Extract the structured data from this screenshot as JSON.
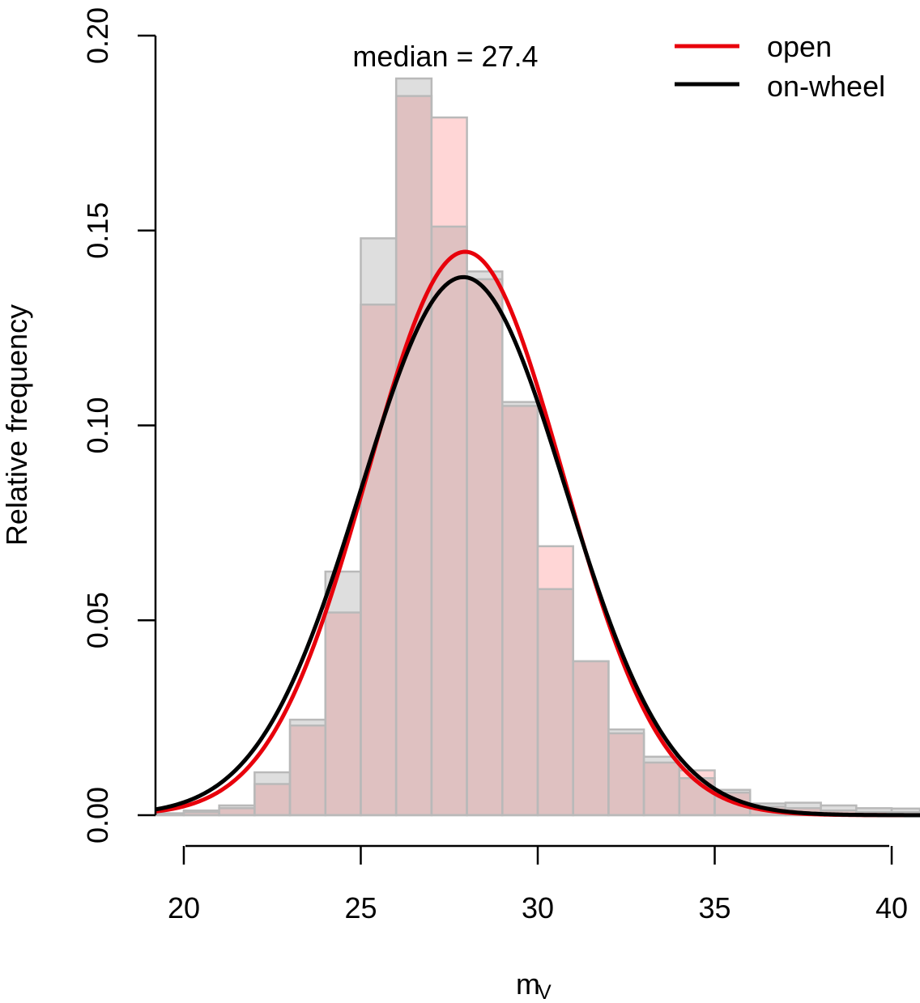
{
  "chart_data": {
    "type": "bar",
    "title": "",
    "annotation": "median = 27.4",
    "xlabel": "m",
    "xlabel_subscript": "V",
    "ylabel": "Relative frequency",
    "xlim": [
      19.2,
      40.8
    ],
    "ylim": [
      0,
      0.2
    ],
    "xticks": [
      20,
      25,
      30,
      35,
      40
    ],
    "xtick_labels": [
      "20",
      "25",
      "30",
      "35",
      "40"
    ],
    "yticks": [
      0,
      0.05,
      0.1,
      0.15,
      0.2
    ],
    "ytick_labels": [
      "0.00",
      "0.05",
      "0.10",
      "0.15",
      "0.20"
    ],
    "bin_edges": [
      19,
      20,
      21,
      22,
      23,
      24,
      25,
      26,
      27,
      28,
      29,
      30,
      31,
      32,
      33,
      34,
      35,
      36,
      37,
      38,
      39,
      40,
      41
    ],
    "histograms": [
      {
        "name": "on-wheel",
        "fill": "#dedede",
        "stroke": "#b9b9b9",
        "values": [
          0.0005,
          0.0012,
          0.0025,
          0.011,
          0.0245,
          0.0625,
          0.148,
          0.189,
          0.151,
          0.1395,
          0.106,
          0.058,
          0.0395,
          0.022,
          0.015,
          0.0095,
          0.0065,
          0.003,
          0.0032,
          0.0025,
          0.0018,
          0.0017
        ]
      },
      {
        "name": "open",
        "fill": "#ffd6d6",
        "stroke": "#b9b9b9",
        "values": [
          0.0003,
          0.0008,
          0.0018,
          0.008,
          0.023,
          0.052,
          0.131,
          0.1845,
          0.179,
          0.1375,
          0.105,
          0.069,
          0.0395,
          0.021,
          0.0135,
          0.0115,
          0.0058,
          0.0022,
          0.0018,
          0.0012,
          0.0008,
          0.0008
        ]
      }
    ],
    "overlap_fill": "#dfc1c1",
    "series": [
      {
        "name": "open",
        "type": "gaussian",
        "mean": 27.95,
        "sd": 2.76,
        "color": "#e8000b"
      },
      {
        "name": "on-wheel",
        "type": "gaussian",
        "mean": 27.9,
        "sd": 2.89,
        "color": "#000000"
      }
    ],
    "legend": {
      "position": "top-right",
      "entries": [
        {
          "label": "open",
          "color": "#e8000b"
        },
        {
          "label": "on-wheel",
          "color": "#000000"
        }
      ]
    }
  }
}
